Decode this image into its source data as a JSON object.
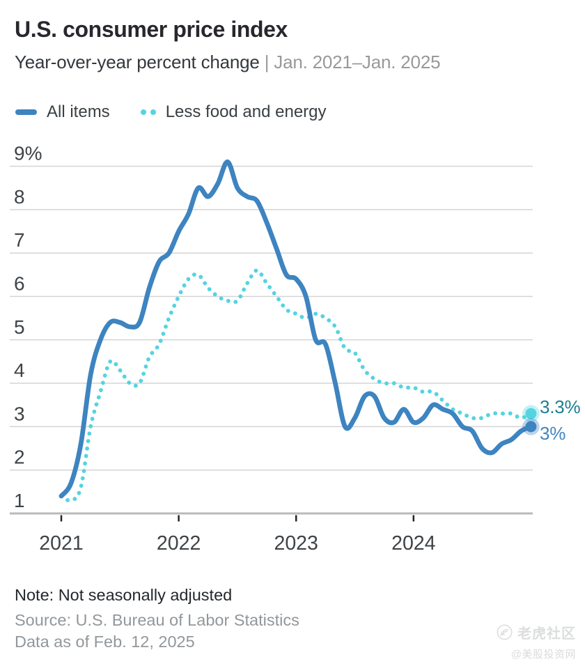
{
  "header": {
    "title": "U.S. consumer price index",
    "subtitle": "Year-over-year percent change",
    "subtitle_range": "| Jan. 2021–Jan. 2025"
  },
  "legend": [
    {
      "label": "All items"
    },
    {
      "label": "Less food and energy"
    }
  ],
  "chart_data": {
    "type": "line",
    "title": "U.S. consumer price index",
    "xlabel": "",
    "ylabel": "Year-over-year percent change",
    "x_range": [
      "Jan. 2021",
      "Jan. 2025"
    ],
    "x_frequency": "monthly",
    "x_tick_labels": [
      "2021",
      "2022",
      "2023",
      "2024"
    ],
    "y_ticks": [
      {
        "label": "9%",
        "value": 9
      },
      {
        "label": "8",
        "value": 8
      },
      {
        "label": "7",
        "value": 7
      },
      {
        "label": "6",
        "value": 6
      },
      {
        "label": "5",
        "value": 5
      },
      {
        "label": "4",
        "value": 4
      },
      {
        "label": "3",
        "value": 3
      },
      {
        "label": "2",
        "value": 2
      },
      {
        "label": "1",
        "value": 1
      }
    ],
    "ylim": [
      1,
      9.4
    ],
    "grid": "horizontal",
    "legend_position": "top-left",
    "series": [
      {
        "name": "All items",
        "style": "solid",
        "color": "#3d84c0",
        "end_label": "3%",
        "end_label_color": "#4286bf",
        "values": [
          1.4,
          1.7,
          2.6,
          4.2,
          5.0,
          5.4,
          5.4,
          5.3,
          5.4,
          6.2,
          6.8,
          7.0,
          7.5,
          7.9,
          8.5,
          8.3,
          8.6,
          9.1,
          8.5,
          8.3,
          8.2,
          7.7,
          7.1,
          6.5,
          6.4,
          6.0,
          5.0,
          4.9,
          4.0,
          3.0,
          3.2,
          3.7,
          3.7,
          3.2,
          3.1,
          3.4,
          3.1,
          3.2,
          3.5,
          3.4,
          3.3,
          3.0,
          2.9,
          2.5,
          2.4,
          2.6,
          2.7,
          2.9,
          3.0
        ]
      },
      {
        "name": "Less food and energy",
        "style": "dotted",
        "color": "#54d4e1",
        "end_label": "3.3%",
        "end_label_color": "#1b7f90",
        "values": [
          1.4,
          1.3,
          1.6,
          3.0,
          3.8,
          4.5,
          4.3,
          4.0,
          4.0,
          4.6,
          4.9,
          5.5,
          6.0,
          6.4,
          6.5,
          6.2,
          6.0,
          5.9,
          5.9,
          6.3,
          6.6,
          6.3,
          6.0,
          5.7,
          5.6,
          5.5,
          5.6,
          5.5,
          5.3,
          4.8,
          4.7,
          4.3,
          4.1,
          4.0,
          4.0,
          3.9,
          3.9,
          3.8,
          3.8,
          3.6,
          3.4,
          3.3,
          3.2,
          3.2,
          3.3,
          3.3,
          3.3,
          3.2,
          3.3
        ]
      }
    ],
    "colors": {
      "gridline": "#d4d4d4",
      "axis_line": "#b7babc",
      "tick_mark": "#212427",
      "tick_text": "#3e4347"
    }
  },
  "footer": {
    "note": "Note: Not seasonally adjusted",
    "source": "Source: U.S. Bureau of Labor Statistics",
    "as_of": "Data as of Feb. 12, 2025"
  },
  "watermark": {
    "community": "老虎社区",
    "handle": "@美股投资网"
  }
}
